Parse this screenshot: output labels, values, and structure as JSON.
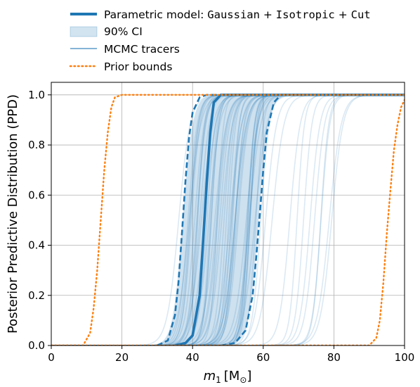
{
  "chart_data": {
    "type": "line",
    "xlabel_var": "m",
    "xlabel_sub": "1",
    "xlabel_unit_open": "[M",
    "xlabel_unit_sub": "⊙",
    "xlabel_unit_close": "]",
    "ylabel": "Posterior Predictive Distribution (PPD)",
    "xlim": [
      0,
      100
    ],
    "ylim": [
      0,
      1.05
    ],
    "xticks": [
      "0",
      "20",
      "40",
      "60",
      "80",
      "100"
    ],
    "yticks": [
      "0.0",
      "0.2",
      "0.4",
      "0.6",
      "0.8",
      "1.0"
    ],
    "xtick_values": [
      0,
      20,
      40,
      60,
      80,
      100
    ],
    "ytick_values": [
      0,
      0.2,
      0.4,
      0.6,
      0.8,
      1.0
    ],
    "grid": true,
    "legend_placement": "above-top-left",
    "legend": {
      "model_prefix": "Parametric model: ",
      "model_code_parts": [
        "Gaussian",
        "Isotropic",
        "Cut"
      ],
      "ci": "90% CI",
      "tracers": "MCMC tracers",
      "prior": "Prior bounds"
    },
    "colors": {
      "main": "#1f77b4",
      "prior": "#ff7f0e",
      "grid": "#b0b0b0"
    },
    "series": [
      {
        "role": "median",
        "x": [
          35,
          38,
          40,
          42,
          43,
          44,
          45,
          46,
          48,
          50,
          100
        ],
        "y": [
          0,
          0.01,
          0.04,
          0.2,
          0.42,
          0.65,
          0.85,
          0.97,
          1.0,
          1.0,
          1.0
        ]
      },
      {
        "role": "ci-lower-bound",
        "x": [
          30,
          33,
          35,
          36,
          37,
          38,
          39,
          40,
          42,
          44,
          100
        ],
        "y": [
          0,
          0.02,
          0.12,
          0.25,
          0.45,
          0.66,
          0.83,
          0.93,
          0.99,
          1.0,
          1.0
        ]
      },
      {
        "role": "ci-upper-bound",
        "x": [
          48,
          52,
          55,
          57,
          58,
          59,
          60,
          61,
          63,
          65,
          100
        ],
        "y": [
          0,
          0.01,
          0.06,
          0.2,
          0.35,
          0.52,
          0.7,
          0.85,
          0.97,
          1.0,
          1.0
        ]
      },
      {
        "role": "prior-lower",
        "x": [
          0,
          9,
          11,
          12,
          13,
          14,
          15,
          16,
          17,
          18,
          20,
          100
        ],
        "y": [
          0,
          0,
          0.05,
          0.15,
          0.3,
          0.5,
          0.7,
          0.85,
          0.95,
          0.99,
          1.0,
          1.0
        ]
      },
      {
        "role": "prior-upper",
        "x": [
          0,
          90,
          92,
          93,
          94,
          95,
          96,
          97,
          98,
          99,
          100
        ],
        "y": [
          0,
          0,
          0.03,
          0.1,
          0.25,
          0.45,
          0.62,
          0.78,
          0.88,
          0.95,
          0.98
        ]
      }
    ],
    "tracer_count": 60,
    "tracer_midpoint_range": [
      34,
      82
    ]
  }
}
